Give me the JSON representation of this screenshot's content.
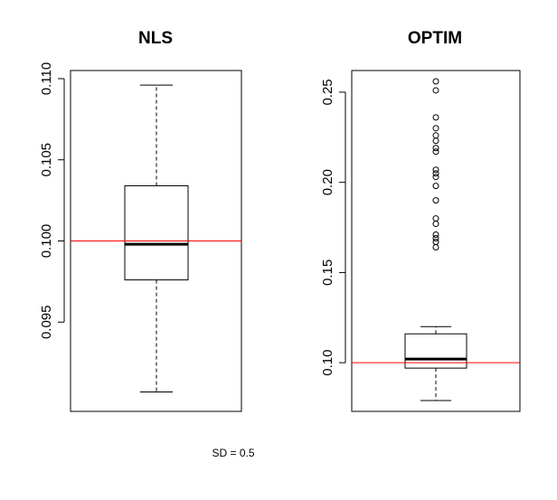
{
  "caption": "SD = 0.5",
  "chart_data": [
    {
      "type": "boxplot",
      "title": "NLS",
      "xlabel": "",
      "ylabel": "",
      "ylim": [
        0.0895,
        0.1105
      ],
      "yticks": [
        0.095,
        0.1,
        0.105,
        0.11
      ],
      "ytick_labels": [
        "0.095",
        "0.100",
        "0.105",
        "0.110"
      ],
      "box": {
        "whisker_low": 0.0907,
        "q1": 0.0976,
        "median": 0.0998,
        "q3": 0.1034,
        "whisker_high": 0.1096
      },
      "outliers": [],
      "reference_line": {
        "y": 0.1,
        "color": "#ff0000"
      }
    },
    {
      "type": "boxplot",
      "title": "OPTIM",
      "xlabel": "",
      "ylabel": "",
      "ylim": [
        0.073,
        0.262
      ],
      "yticks": [
        0.1,
        0.15,
        0.2,
        0.25
      ],
      "ytick_labels": [
        "0.10",
        "0.15",
        "0.20",
        "0.25"
      ],
      "box": {
        "whisker_low": 0.079,
        "q1": 0.097,
        "median": 0.102,
        "q3": 0.116,
        "whisker_high": 0.12
      },
      "outliers": [
        0.164,
        0.167,
        0.169,
        0.171,
        0.177,
        0.18,
        0.19,
        0.198,
        0.203,
        0.205,
        0.207,
        0.217,
        0.219,
        0.223,
        0.226,
        0.23,
        0.236,
        0.251,
        0.256
      ],
      "reference_line": {
        "y": 0.1,
        "color": "#ff0000"
      }
    }
  ]
}
